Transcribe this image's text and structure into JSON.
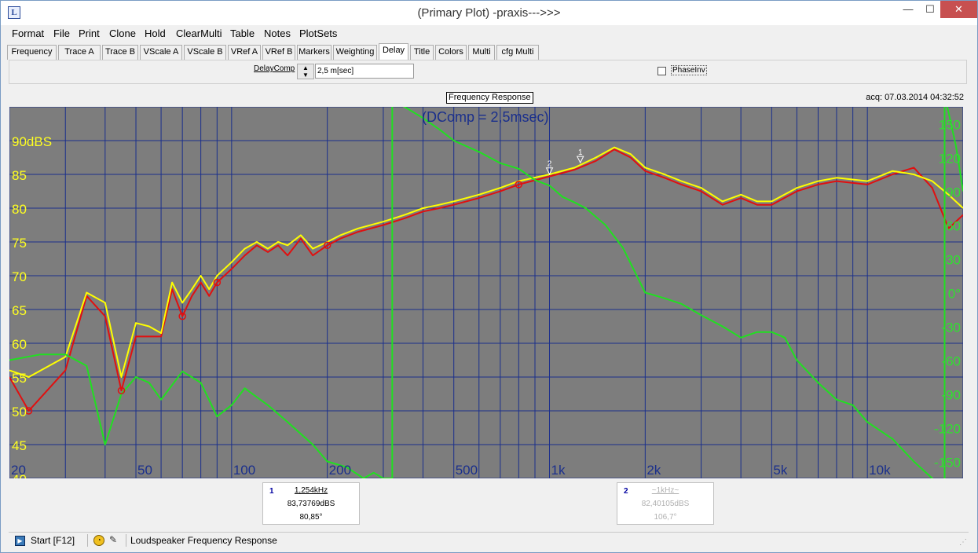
{
  "window": {
    "title": "(Primary Plot) -praxis--->>>",
    "app_icon": "L",
    "minimize": "—",
    "maximize": "☐",
    "close": "✕"
  },
  "menu": [
    "Format",
    "File",
    "Print",
    "Clone",
    "Hold",
    "ClearMulti",
    "Table",
    "Notes",
    "PlotSets"
  ],
  "tabs": [
    {
      "label": "Frequency",
      "active": false
    },
    {
      "label": "Trace A",
      "active": false
    },
    {
      "label": "Trace B",
      "active": false
    },
    {
      "label": "VScale A",
      "active": false
    },
    {
      "label": "VScale B",
      "active": false
    },
    {
      "label": "VRef A",
      "active": false
    },
    {
      "label": "VRef B",
      "active": false
    },
    {
      "label": "Markers",
      "active": false
    },
    {
      "label": "Weighting",
      "active": false
    },
    {
      "label": "Delay",
      "active": true
    },
    {
      "label": "Title",
      "active": false
    },
    {
      "label": "Colors",
      "active": false
    },
    {
      "label": "Multi",
      "active": false
    },
    {
      "label": "cfg Multi",
      "active": false
    }
  ],
  "delay_panel": {
    "label": "DelayComp",
    "value": "2,5 m[sec]",
    "spin_up": "▲",
    "spin_down": "▼",
    "phase_label": "PhaseInv",
    "phase_checked": false
  },
  "plot": {
    "title_box": "Frequency Response",
    "acq": "acq: 07.03.2014 04:32:52",
    "annotation": "(DComp = 2,5msec)",
    "colors": {
      "background": "#7d7d7d",
      "grid": "#1a2f8c",
      "trace_a": "#ffff00",
      "trace_b": "#e01010",
      "phase": "#20e020",
      "left_axis": "#ffff20",
      "right_axis": "#30e030",
      "annotation": "#1a2f8c"
    }
  },
  "chart_data": {
    "type": "line",
    "xscale": "log",
    "xlim": [
      20,
      20000
    ],
    "ylim": [
      40,
      95
    ],
    "y2lim": [
      -165,
      165
    ],
    "x_tick_labels": [
      {
        "x": 20,
        "label": "20"
      },
      {
        "x": 50,
        "label": "50"
      },
      {
        "x": 100,
        "label": "100"
      },
      {
        "x": 200,
        "label": "200"
      },
      {
        "x": 500,
        "label": "500"
      },
      {
        "x": 1000,
        "label": "1k"
      },
      {
        "x": 2000,
        "label": "2k"
      },
      {
        "x": 5000,
        "label": "5k"
      },
      {
        "x": 10000,
        "label": "10k"
      }
    ],
    "y_tick_labels": [
      {
        "y": 90,
        "label": "90dBS"
      },
      {
        "y": 85,
        "label": "85"
      },
      {
        "y": 80,
        "label": "80"
      },
      {
        "y": 75,
        "label": "75"
      },
      {
        "y": 70,
        "label": "70"
      },
      {
        "y": 65,
        "label": "65"
      },
      {
        "y": 60,
        "label": "60"
      },
      {
        "y": 55,
        "label": "55"
      },
      {
        "y": 50,
        "label": "50"
      },
      {
        "y": 45,
        "label": "45"
      },
      {
        "y": 40,
        "label": "40"
      }
    ],
    "y2_tick_labels": [
      {
        "y": 150,
        "label": "150"
      },
      {
        "y": 120,
        "label": "120"
      },
      {
        "y": 90,
        "label": "90"
      },
      {
        "y": 60,
        "label": "60"
      },
      {
        "y": 30,
        "label": "30"
      },
      {
        "y": 0,
        "label": "0°"
      },
      {
        "y": -30,
        "label": "-30"
      },
      {
        "y": -60,
        "label": "-60"
      },
      {
        "y": -90,
        "label": "-90"
      },
      {
        "y": -120,
        "label": "-120"
      },
      {
        "y": -150,
        "label": "-150"
      }
    ],
    "series": [
      {
        "axis": "left",
        "x": [
          20,
          23,
          30,
          35,
          40,
          45,
          50,
          55,
          60,
          65,
          70,
          75,
          80,
          85,
          90,
          100,
          110,
          120,
          130,
          140,
          150,
          165,
          180,
          200,
          220,
          250,
          300,
          350,
          400,
          450,
          500,
          600,
          700,
          800,
          1000,
          1200,
          1400,
          1600,
          1800,
          2000,
          2300,
          2600,
          3000,
          3500,
          4000,
          4500,
          5000,
          6000,
          7000,
          8000,
          10000,
          12000,
          14000,
          16000,
          18000,
          20000
        ],
        "y": [
          56,
          55,
          58,
          67.5,
          66,
          55,
          63,
          62.5,
          61.5,
          69,
          66,
          68,
          70,
          68,
          70,
          72,
          74,
          75,
          74,
          75,
          74.5,
          76,
          74,
          75,
          76,
          77,
          78,
          79,
          80,
          80.5,
          81,
          82,
          83,
          84,
          85,
          86,
          87.5,
          89,
          88,
          86,
          85,
          84,
          83,
          81,
          82,
          81,
          81,
          83,
          84,
          84.5,
          84,
          85.5,
          85,
          84,
          82,
          80
        ]
      },
      {
        "axis": "left",
        "x": [
          20,
          23,
          30,
          35,
          40,
          45,
          50,
          55,
          60,
          65,
          70,
          75,
          80,
          85,
          90,
          100,
          110,
          120,
          130,
          140,
          150,
          165,
          180,
          200,
          220,
          250,
          300,
          350,
          400,
          450,
          500,
          600,
          700,
          800,
          1000,
          1200,
          1400,
          1600,
          1800,
          2000,
          2300,
          2600,
          3000,
          3500,
          4000,
          4500,
          5000,
          6000,
          7000,
          8000,
          10000,
          12000,
          14000,
          16000,
          18000,
          20000
        ],
        "y": [
          55,
          50,
          56,
          67,
          64,
          53,
          61,
          61,
          61,
          68,
          64,
          67,
          69,
          67,
          69,
          71,
          73,
          74.5,
          73.5,
          74.5,
          73,
          75.5,
          73,
          74.5,
          75.5,
          76.5,
          77.5,
          78.5,
          79.5,
          80,
          80.5,
          81.5,
          82.5,
          83.5,
          84.7,
          85.7,
          87,
          88.7,
          87.5,
          85.5,
          84.5,
          83.5,
          82.5,
          80.5,
          81.5,
          80.5,
          80.5,
          82.5,
          83.5,
          84,
          83.5,
          85,
          86,
          83,
          77,
          79
        ]
      },
      {
        "axis": "right",
        "x": [
          20,
          25,
          30,
          35,
          40,
          45,
          50,
          55,
          60,
          70,
          80,
          90,
          100,
          110,
          130,
          150,
          180,
          200,
          230,
          260,
          280,
          300,
          320,
          350,
          400,
          450,
          500,
          600,
          700,
          800,
          900,
          1000,
          1100,
          1200,
          1300,
          1500,
          1700,
          2000,
          2300,
          2600,
          3000,
          3500,
          4000,
          4500,
          5000,
          5500,
          6000,
          7000,
          8000,
          9000,
          10000,
          12000,
          14000,
          16000,
          17000,
          17500,
          18000,
          19000,
          20000
        ],
        "y": [
          -60,
          -55,
          -55,
          -65,
          -135,
          -90,
          -75,
          -80,
          -95,
          -70,
          -80,
          -110,
          -100,
          -85,
          -100,
          -115,
          -135,
          -150,
          -155,
          -165,
          -160,
          -165,
          170,
          165,
          155,
          145,
          135,
          125,
          115,
          110,
          100,
          95,
          85,
          80,
          75,
          60,
          40,
          0,
          -5,
          -10,
          -20,
          -30,
          -40,
          -35,
          -35,
          -40,
          -60,
          -80,
          -95,
          -100,
          -115,
          -130,
          -150,
          -165,
          -175,
          175,
          160,
          130,
          90
        ]
      }
    ],
    "markers": [
      {
        "x": 1000,
        "y": 84.8,
        "label": "2"
      },
      {
        "x": 1250,
        "y": 86.5,
        "label": "1"
      }
    ]
  },
  "cursors": [
    {
      "num": "1",
      "freq": "1,254kHz",
      "level": "83,73769dBS",
      "phase": "80,85°",
      "active": true
    },
    {
      "num": "2",
      "freq": "~1kHz~",
      "level": "82,40105dBS",
      "phase": "106,7°",
      "active": false
    }
  ],
  "status": {
    "start_label": "Start [F12]",
    "text": "Loudspeaker Frequency Response",
    "grip": "⋰"
  }
}
